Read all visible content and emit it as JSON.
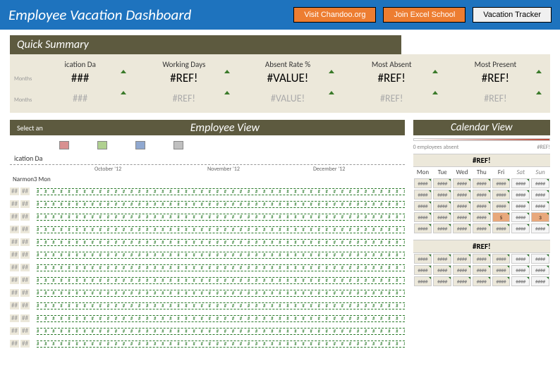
{
  "header": {
    "title": "Employee Vacation Dashboard",
    "buttons": {
      "b1": "Visit Chandoo.org",
      "b2": "Join Excel School",
      "b3": "Vacation Tracker"
    }
  },
  "summary": {
    "title": "Quick Summary",
    "side1": "Months",
    "side2": "Months",
    "cols": {
      "c0": {
        "label": "ication Da",
        "v1": "###",
        "v2": "###"
      },
      "c1": {
        "label": "Working Days",
        "v1": "#REF!",
        "v2": "#REF!"
      },
      "c2": {
        "label": "Absent Rate %",
        "v1": "#VALUE!",
        "v2": "#VALUE!"
      },
      "c3": {
        "label": "Most Absent",
        "v1": "#REF!",
        "v2": "#REF!"
      },
      "c4": {
        "label": "Most Present",
        "v1": "#REF!",
        "v2": "#REF!"
      }
    }
  },
  "employeeView": {
    "selectLabel": "Select an",
    "title": "Employee View",
    "chips": {
      "colors": [
        "#d89090",
        "#b0d090",
        "#90a8d0",
        "#c0c0c0"
      ]
    },
    "axis": {
      "t1": "October '12",
      "t2": "November '12",
      "t3": "December '12"
    },
    "subLabel": "ication Da",
    "narmon": "Narmon3 Mon",
    "rowLabel1": "##",
    "rowLabel2": "##",
    "rowCount": 13
  },
  "calendarView": {
    "title": "Calendar View",
    "scale": {
      "low": "0 employees absent",
      "high": "#REF!"
    },
    "block1": {
      "title": "#REF!",
      "days": [
        "Mon",
        "Tue",
        "Wed",
        "Thu",
        "Fri",
        "Sat",
        "Sun"
      ],
      "cell": "####",
      "hlCells": [
        "3,4",
        "3,6"
      ],
      "hlVals": {
        "3,4": "5",
        "3,6": "3"
      },
      "rows": 5
    },
    "block2": {
      "title": "#REF!",
      "cell": "####",
      "rows": 3
    }
  },
  "colors": {
    "headerBg": "#1e73be",
    "orange": "#ed7d31",
    "olive": "#5d5a3f",
    "beige": "#ece8da",
    "green": "#2a7a2a"
  }
}
